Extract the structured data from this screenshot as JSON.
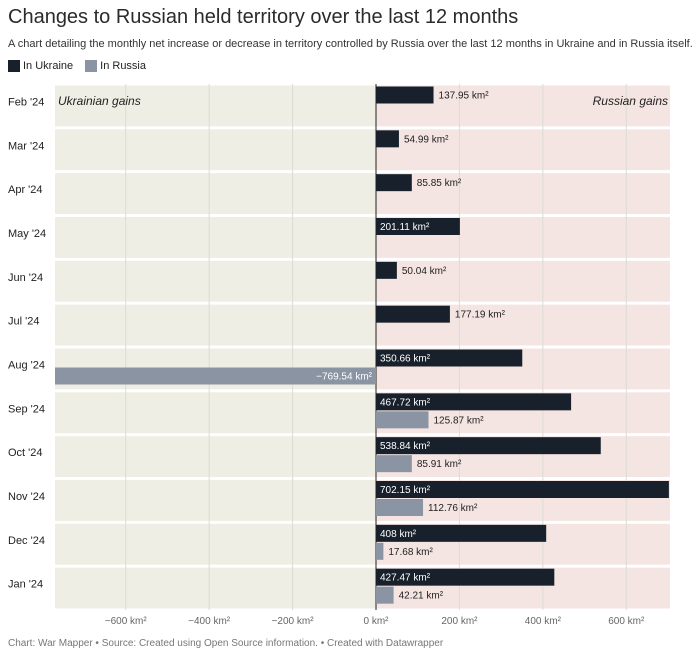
{
  "header": {
    "title": "Changes to Russian held territory over the last 12 months",
    "subtitle": "A chart detailing the monthly net increase or decrease in territory controlled by Russia over the last 12 months in Ukraine and in Russia itself."
  },
  "footer": {
    "text": "Chart: War Mapper • Source: Created using Open Source information. • Created with Datawrapper"
  },
  "chart_data": {
    "type": "bar",
    "orientation": "horizontal",
    "categories": [
      "Feb '24",
      "Mar '24",
      "Apr '24",
      "May '24",
      "Jun '24",
      "Jul '24",
      "Aug '24",
      "Sep '24",
      "Oct '24",
      "Nov '24",
      "Dec '24",
      "Jan '24"
    ],
    "series": [
      {
        "name": "In Ukraine",
        "color": "#18212b",
        "values": [
          137.95,
          54.99,
          85.85,
          201.11,
          50.04,
          177.19,
          350.66,
          467.72,
          538.84,
          702.15,
          408,
          427.47
        ],
        "labels": [
          "137.95 km²",
          "54.99 km²",
          "85.85 km²",
          "201.11 km²",
          "50.04 km²",
          "177.19 km²",
          "350.66 km²",
          "467.72 km²",
          "538.84 km²",
          "702.15 km²",
          "408 km²",
          "427.47 km²"
        ]
      },
      {
        "name": "In Russia",
        "color": "#8a94a3",
        "values": [
          null,
          null,
          null,
          null,
          null,
          null,
          -769.54,
          125.87,
          85.91,
          112.76,
          17.68,
          42.21
        ],
        "labels": [
          null,
          null,
          null,
          null,
          null,
          null,
          "−769.54 km²",
          "125.87 km²",
          "85.91 km²",
          "112.76 km²",
          "17.68 km²",
          "42.21 km²"
        ]
      }
    ],
    "x_ticks": [
      -600,
      -400,
      -200,
      0,
      200,
      400,
      600
    ],
    "x_tick_labels": [
      "−600 km²",
      "−400 km²",
      "−200 km²",
      "0 km²",
      "200 km²",
      "400 km²",
      "600 km²"
    ],
    "xlim": [
      -769.54,
      702.15
    ],
    "annotations": {
      "left": "Ukrainian gains",
      "right": "Russian gains"
    },
    "background": {
      "left": "#eeeee4",
      "right": "#f4e4e2"
    },
    "grid": true,
    "legend_position": "top-left"
  }
}
